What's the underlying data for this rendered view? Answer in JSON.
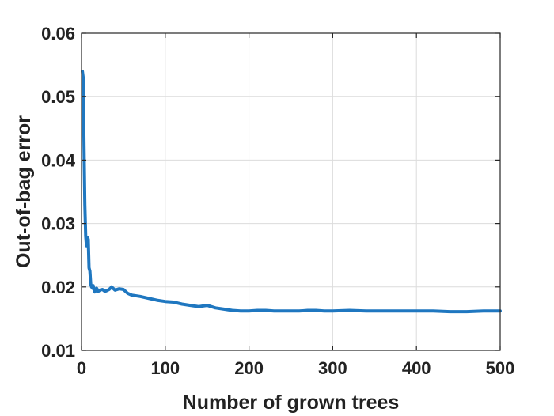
{
  "chart_data": {
    "type": "line",
    "title": "",
    "xlabel": "Number of grown trees",
    "ylabel": "Out-of-bag  error",
    "xlim": [
      0,
      500
    ],
    "ylim": [
      0.01,
      0.06
    ],
    "xticks": [
      0,
      100,
      200,
      300,
      400,
      500
    ],
    "xtick_labels": [
      "0",
      "100",
      "200",
      "300",
      "400",
      "500"
    ],
    "yticks": [
      0.01,
      0.02,
      0.03,
      0.04,
      0.05,
      0.06
    ],
    "ytick_labels": [
      "0.01",
      "0.02",
      "0.03",
      "0.04",
      "0.05",
      "0.06"
    ],
    "grid": true,
    "legend": "none",
    "series": [
      {
        "color": "#1f77c0",
        "x": [
          1,
          2,
          3,
          4,
          5,
          6,
          7,
          8,
          9,
          10,
          11,
          12,
          13,
          14,
          15,
          16,
          18,
          20,
          22,
          25,
          28,
          30,
          33,
          36,
          40,
          45,
          50,
          55,
          60,
          70,
          80,
          90,
          100,
          110,
          120,
          130,
          140,
          150,
          160,
          170,
          180,
          190,
          200,
          210,
          220,
          230,
          240,
          250,
          260,
          270,
          280,
          290,
          300,
          320,
          340,
          360,
          380,
          400,
          420,
          440,
          460,
          480,
          500
        ],
        "y": [
          0.054,
          0.053,
          0.042,
          0.033,
          0.028,
          0.0265,
          0.0278,
          0.0275,
          0.023,
          0.0225,
          0.0205,
          0.02,
          0.0198,
          0.0202,
          0.0195,
          0.0192,
          0.0198,
          0.0193,
          0.0195,
          0.0196,
          0.0193,
          0.0194,
          0.0196,
          0.02,
          0.0195,
          0.0197,
          0.0196,
          0.019,
          0.0187,
          0.0185,
          0.0182,
          0.0179,
          0.0177,
          0.0176,
          0.0173,
          0.0171,
          0.0169,
          0.0171,
          0.0167,
          0.0165,
          0.0163,
          0.0162,
          0.0162,
          0.0163,
          0.0163,
          0.0162,
          0.0162,
          0.0162,
          0.0162,
          0.0163,
          0.0163,
          0.0162,
          0.0162,
          0.0163,
          0.0162,
          0.0162,
          0.0162,
          0.0162,
          0.0162,
          0.0161,
          0.0161,
          0.0162,
          0.0162
        ]
      }
    ]
  }
}
